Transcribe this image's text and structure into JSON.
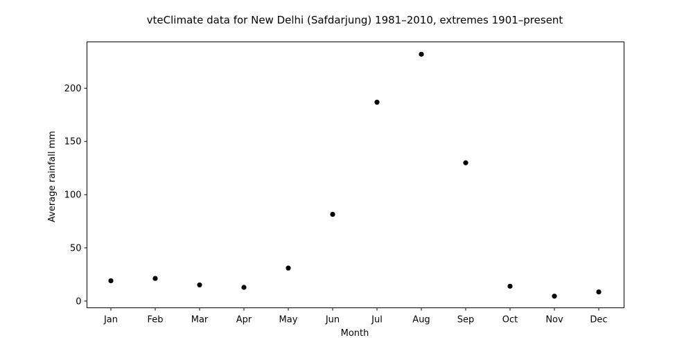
{
  "chart_data": {
    "type": "scatter",
    "title": "vteClimate data for New Delhi (Safdarjung) 1981–2010, extremes 1901–present",
    "xlabel": "Month",
    "ylabel": "Average rainfall mm",
    "categories": [
      "Jan",
      "Feb",
      "Mar",
      "Apr",
      "May",
      "Jun",
      "Jul",
      "Aug",
      "Sep",
      "Oct",
      "Nov",
      "Dec"
    ],
    "series": [
      {
        "values": [
          19.1,
          21.3,
          15.2,
          12.9,
          31.0,
          81.5,
          186.8,
          231.9,
          129.9,
          14.0,
          4.6,
          8.6
        ]
      }
    ],
    "ylim": [
      -6.3,
      243.5
    ],
    "yticks": [
      0,
      50,
      100,
      150,
      200
    ],
    "grid": false,
    "marker_color": "#000000"
  }
}
